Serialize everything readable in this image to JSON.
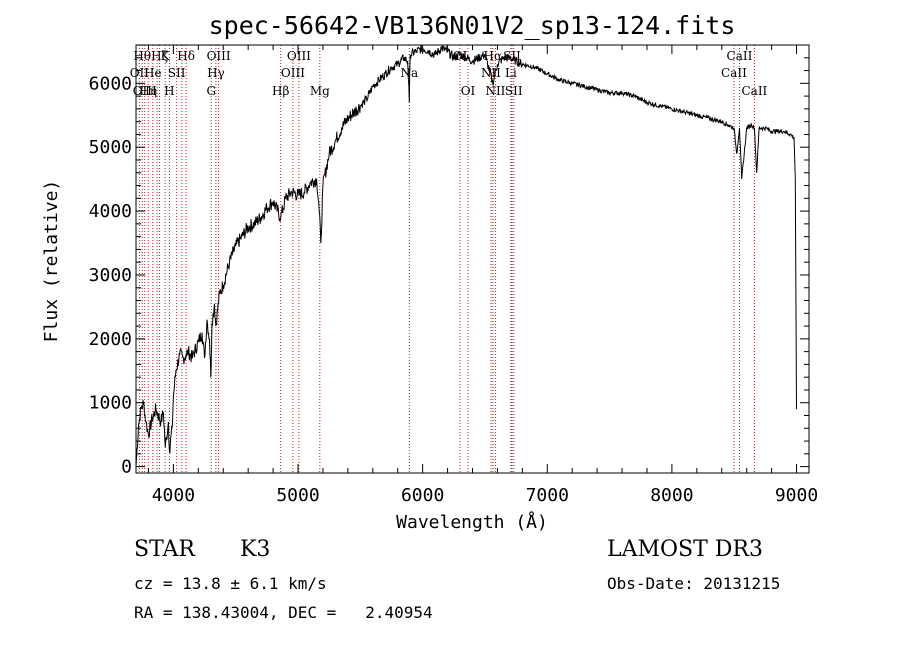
{
  "chart_data": {
    "type": "line",
    "title": "spec-56642-VB136N01V2_sp13-124.fits",
    "xlabel": "Wavelength (Å)",
    "ylabel": "Flux (relative)",
    "xlim": [
      3700,
      9100
    ],
    "ylim": [
      -100,
      6600
    ],
    "x_ticks": [
      4000,
      5000,
      6000,
      7000,
      8000,
      9000
    ],
    "y_ticks": [
      0,
      1000,
      2000,
      3000,
      4000,
      5000,
      6000
    ],
    "grid": false,
    "series": [
      {
        "name": "spectrum",
        "x": [
          3700,
          3720,
          3740,
          3760,
          3780,
          3800,
          3830,
          3860,
          3900,
          3920,
          3935,
          3960,
          3968,
          3990,
          4000,
          4020,
          4050,
          4080,
          4101,
          4120,
          4150,
          4200,
          4230,
          4250,
          4270,
          4290,
          4300,
          4310,
          4330,
          4340,
          4370,
          4400,
          4450,
          4500,
          4550,
          4600,
          4650,
          4700,
          4750,
          4800,
          4861,
          4900,
          4950,
          5000,
          5050,
          5100,
          5150,
          5170,
          5183,
          5200,
          5250,
          5300,
          5350,
          5400,
          5450,
          5500,
          5550,
          5600,
          5650,
          5700,
          5750,
          5800,
          5850,
          5880,
          5893,
          5900,
          5950,
          6000,
          6050,
          6100,
          6150,
          6200,
          6250,
          6300,
          6350,
          6400,
          6450,
          6500,
          6563,
          6600,
          6650,
          6700,
          6750,
          6800,
          6900,
          7000,
          7100,
          7200,
          7300,
          7400,
          7500,
          7600,
          7700,
          7800,
          7900,
          8000,
          8100,
          8200,
          8300,
          8400,
          8450,
          8498,
          8520,
          8542,
          8560,
          8600,
          8640,
          8662,
          8680,
          8700,
          8750,
          8800,
          8850,
          8900,
          8950,
          8980,
          8990,
          9000
        ],
        "y": [
          0,
          650,
          900,
          1000,
          700,
          500,
          750,
          900,
          700,
          850,
          300,
          700,
          250,
          600,
          1100,
          1500,
          1750,
          1700,
          1750,
          1800,
          1700,
          1950,
          2100,
          1700,
          2300,
          2000,
          1400,
          2250,
          2550,
          2200,
          2700,
          2850,
          3200,
          3450,
          3600,
          3750,
          3800,
          3900,
          4050,
          4150,
          3900,
          4200,
          4300,
          4250,
          4300,
          4450,
          4500,
          4000,
          3500,
          4400,
          4900,
          5100,
          5300,
          5450,
          5550,
          5650,
          5750,
          5950,
          6050,
          6150,
          6250,
          6300,
          6400,
          6350,
          5700,
          6450,
          6500,
          6550,
          6500,
          6450,
          6550,
          6500,
          6400,
          6450,
          6400,
          6350,
          6400,
          6450,
          6000,
          6300,
          6400,
          6400,
          6350,
          6300,
          6250,
          6150,
          6050,
          6000,
          5950,
          5900,
          5850,
          5850,
          5800,
          5700,
          5650,
          5600,
          5550,
          5500,
          5450,
          5400,
          5350,
          5300,
          4900,
          5300,
          4500,
          5300,
          5350,
          5300,
          4600,
          5300,
          5300,
          5250,
          5250,
          5250,
          5200,
          5150,
          4500,
          900
        ]
      }
    ],
    "spectral_lines": [
      {
        "x": 3727,
        "label": "OII",
        "row": 1
      },
      {
        "x": 3750,
        "label": "Hθ",
        "row": 0
      },
      {
        "x": 3770,
        "label": "OIII",
        "row": 2
      },
      {
        "x": 3798,
        "label": "Hη",
        "row": 2
      },
      {
        "x": 3835,
        "label": "He",
        "row": 1
      },
      {
        "x": 3869,
        "label": "",
        "row": 0
      },
      {
        "x": 3889,
        "label": "Hζ",
        "row": 0
      },
      {
        "x": 3934,
        "label": "K",
        "row": 0
      },
      {
        "x": 3968,
        "label": "H",
        "row": 2
      },
      {
        "x": 4026,
        "label": "SII",
        "row": 1
      },
      {
        "x": 4068,
        "label": "",
        "row": 0
      },
      {
        "x": 4102,
        "label": "Hδ",
        "row": 0
      },
      {
        "x": 4304,
        "label": "G",
        "row": 2
      },
      {
        "x": 4341,
        "label": "Hγ",
        "row": 1
      },
      {
        "x": 4363,
        "label": "OIII",
        "row": 0
      },
      {
        "x": 4861,
        "label": "Hβ",
        "row": 2
      },
      {
        "x": 4959,
        "label": "OIII",
        "row": 1
      },
      {
        "x": 5007,
        "label": "OIII",
        "row": 0
      },
      {
        "x": 5175,
        "label": "Mg",
        "row": 2
      },
      {
        "x": 5893,
        "label": "Na",
        "row": 1
      },
      {
        "x": 6300,
        "label": "OI",
        "row": 0
      },
      {
        "x": 6364,
        "label": "OI",
        "row": 2
      },
      {
        "x": 6548,
        "label": "NII",
        "row": 1
      },
      {
        "x": 6563,
        "label": "Hα",
        "row": 0
      },
      {
        "x": 6584,
        "label": "NII",
        "row": 2
      },
      {
        "x": 6708,
        "label": "Li",
        "row": 1
      },
      {
        "x": 6717,
        "label": "SII",
        "row": 0
      },
      {
        "x": 6731,
        "label": "SII",
        "row": 2
      },
      {
        "x": 8498,
        "label": "CaII",
        "row": 1
      },
      {
        "x": 8542,
        "label": "CaII",
        "row": 0
      },
      {
        "x": 8662,
        "label": "CaII",
        "row": 2
      }
    ]
  },
  "info": {
    "object_class": "STAR",
    "subclass": "K3",
    "survey": "LAMOST DR3",
    "cz": "cz = 13.8 ± 6.1 km/s",
    "obs_date": "Obs-Date: 20131215",
    "coords": "RA = 138.43004, DEC =   2.40954"
  },
  "colors": {
    "line_marker": "#b22222",
    "spectrum": "#000000",
    "axes": "#000000",
    "background": "#ffffff"
  }
}
